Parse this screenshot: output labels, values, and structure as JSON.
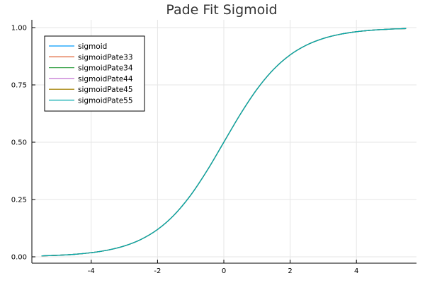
{
  "chart_data": {
    "type": "line",
    "title": "Pade Fit Sigmoid",
    "xlabel": "",
    "ylabel": "",
    "xlim": [
      -5.5,
      5.5
    ],
    "ylim": [
      0,
      1
    ],
    "x_ticks": [
      -4,
      -2,
      0,
      2,
      4
    ],
    "x_tick_labels": [
      "-4",
      "-2",
      "0",
      "2",
      "4"
    ],
    "y_ticks": [
      0,
      0.25,
      0.5,
      0.75,
      1.0
    ],
    "y_tick_labels": [
      "0.00",
      "0.25",
      "0.50",
      "0.75",
      "1.00"
    ],
    "grid": true,
    "legend_position": "top-left",
    "x": [
      -5.5,
      -5,
      -4.5,
      -4,
      -3.5,
      -3,
      -2.5,
      -2,
      -1.5,
      -1,
      -0.5,
      0,
      0.5,
      1,
      1.5,
      2,
      2.5,
      3,
      3.5,
      4,
      4.5,
      5,
      5.5
    ],
    "series": [
      {
        "name": "sigmoid",
        "color": "#009af9",
        "values": [
          0.0041,
          0.0067,
          0.011,
          0.018,
          0.0293,
          0.0474,
          0.0759,
          0.1192,
          0.1824,
          0.2689,
          0.3775,
          0.5,
          0.6225,
          0.7311,
          0.8176,
          0.8808,
          0.9241,
          0.9526,
          0.9707,
          0.982,
          0.989,
          0.9933,
          0.9959
        ]
      },
      {
        "name": "sigmoidPate33",
        "color": "#e26f46",
        "values": [
          0.0041,
          0.0067,
          0.011,
          0.018,
          0.0293,
          0.0474,
          0.0759,
          0.1192,
          0.1824,
          0.2689,
          0.3775,
          0.5,
          0.6225,
          0.7311,
          0.8176,
          0.8808,
          0.9241,
          0.9526,
          0.9707,
          0.982,
          0.989,
          0.9933,
          0.9959
        ]
      },
      {
        "name": "sigmoidPate34",
        "color": "#3da44d",
        "values": [
          0.0041,
          0.0067,
          0.011,
          0.018,
          0.0293,
          0.0474,
          0.0759,
          0.1192,
          0.1824,
          0.2689,
          0.3775,
          0.5,
          0.6225,
          0.7311,
          0.8176,
          0.8808,
          0.9241,
          0.9526,
          0.9707,
          0.982,
          0.989,
          0.9933,
          0.9959
        ]
      },
      {
        "name": "sigmoidPate44",
        "color": "#c271d2",
        "values": [
          0.0041,
          0.0067,
          0.011,
          0.018,
          0.0293,
          0.0474,
          0.0759,
          0.1192,
          0.1824,
          0.2689,
          0.3775,
          0.5,
          0.6225,
          0.7311,
          0.8176,
          0.8808,
          0.9241,
          0.9526,
          0.9707,
          0.982,
          0.989,
          0.9933,
          0.9959
        ]
      },
      {
        "name": "sigmoidPate45",
        "color": "#ac8d18",
        "values": [
          0.0041,
          0.0067,
          0.011,
          0.018,
          0.0293,
          0.0474,
          0.0759,
          0.1192,
          0.1824,
          0.2689,
          0.3775,
          0.5,
          0.6225,
          0.7311,
          0.8176,
          0.8808,
          0.9241,
          0.9526,
          0.9707,
          0.982,
          0.989,
          0.9933,
          0.9959
        ]
      },
      {
        "name": "sigmoidPate55",
        "color": "#00a9ad",
        "values": [
          0.0041,
          0.0067,
          0.011,
          0.018,
          0.0293,
          0.0474,
          0.0759,
          0.1192,
          0.1824,
          0.2689,
          0.3775,
          0.5,
          0.6225,
          0.7311,
          0.8176,
          0.8808,
          0.9241,
          0.9526,
          0.9707,
          0.982,
          0.989,
          0.9933,
          0.9959
        ]
      }
    ]
  }
}
